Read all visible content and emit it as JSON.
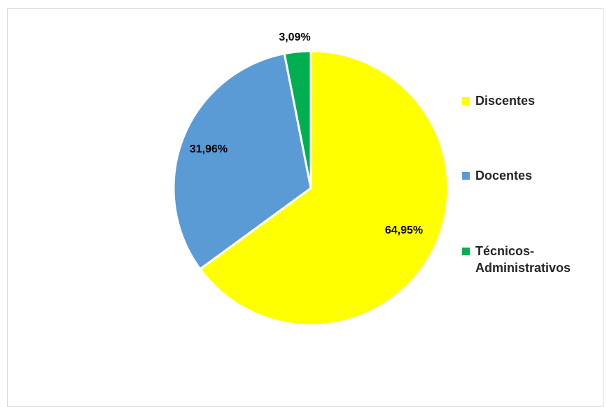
{
  "chart_data": {
    "type": "pie",
    "slices": [
      {
        "label": "Discentes",
        "value": 64.95,
        "display": "64,95%",
        "color": "#FFFF00"
      },
      {
        "label": "Docentes",
        "value": 31.96,
        "display": "31,96%",
        "color": "#5B9BD5"
      },
      {
        "label": "Técnicos-Administrativos",
        "value": 3.09,
        "display": "3,09%",
        "color": "#00B050"
      }
    ],
    "legend_position": "right",
    "start_angle_deg": 0,
    "direction": "clockwise"
  },
  "legend": {
    "items": [
      {
        "label": "Discentes",
        "color": "#FFFF00"
      },
      {
        "label": "Docentes",
        "color": "#5B9BD5"
      },
      {
        "label": "Técnicos-Administrativos",
        "color": "#00B050"
      }
    ]
  }
}
